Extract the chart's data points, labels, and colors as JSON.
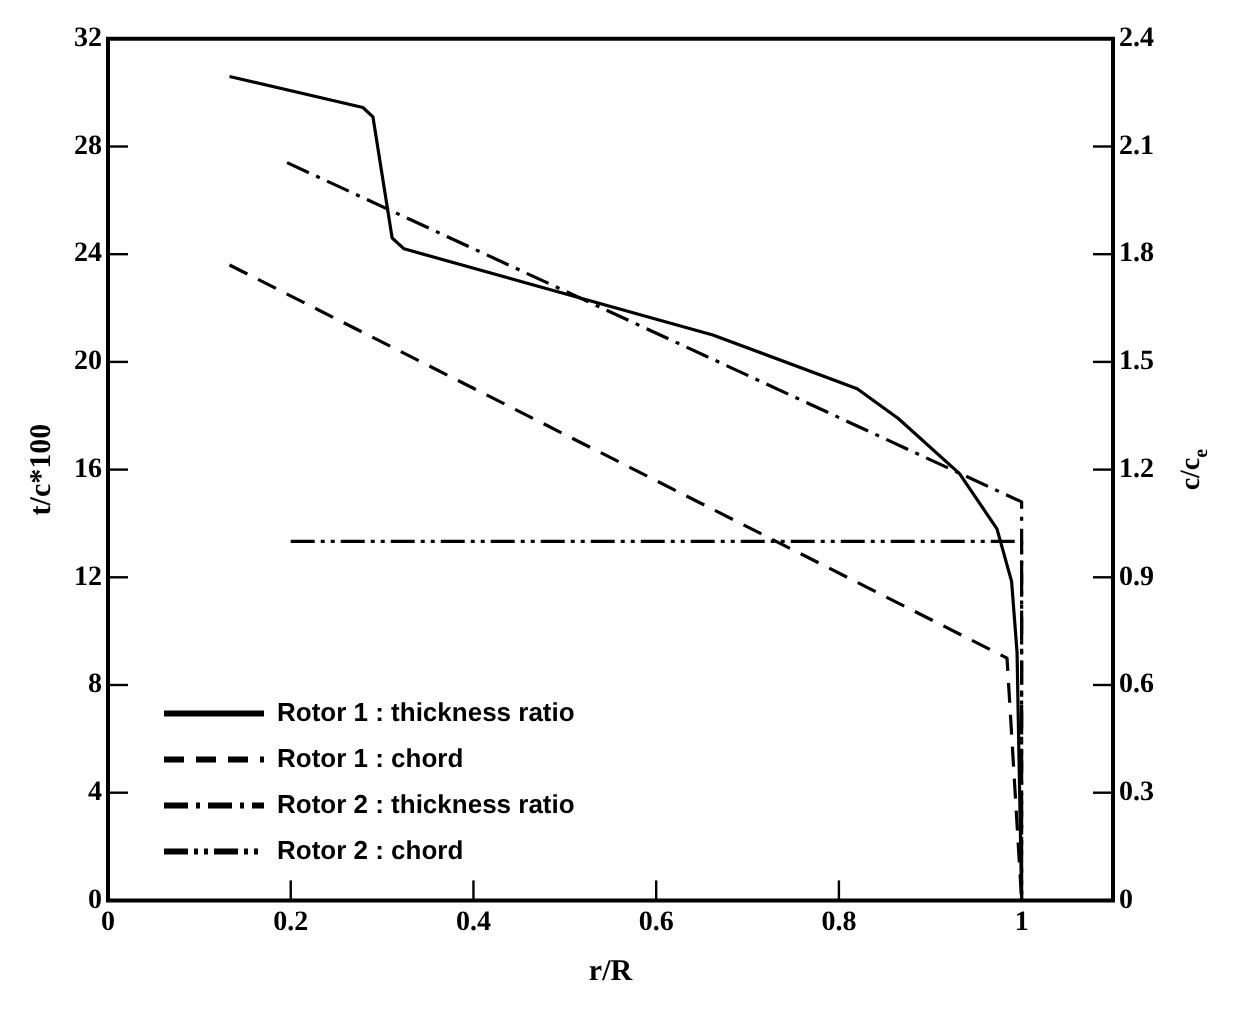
{
  "chart_data": {
    "type": "line",
    "xlabel": "r/R",
    "ylabel": "t/c*100",
    "y2label": "c/c$_{e}$",
    "xlim": [
      0,
      1.1
    ],
    "xticks": [
      0,
      0.2,
      0.4,
      0.6,
      0.8,
      1
    ],
    "ylim": [
      0,
      32
    ],
    "yticks": [
      0,
      4,
      8,
      12,
      16,
      20,
      24,
      28,
      32
    ],
    "y2lim": [
      0,
      2.4
    ],
    "y2ticks": [
      0,
      0.3,
      0.6,
      0.9,
      1.2,
      1.5,
      1.8,
      2.1,
      2.4
    ],
    "grid": false,
    "legend": "bottom left",
    "marker": "none",
    "series": [
      {
        "name": "Rotor 1 : thickness ratio",
        "color": "#000000",
        "line_style": "solid",
        "x": [
          0.133,
          0.279,
          0.29,
          0.311,
          0.324,
          0.662,
          0.82,
          0.865,
          0.932,
          0.973,
          0.989,
          0.995,
          1.0
        ],
        "values": [
          30.6,
          29.45,
          29.1,
          24.6,
          24.2,
          21.0,
          19.0,
          17.9,
          15.85,
          13.8,
          11.85,
          9.2,
          0
        ]
      },
      {
        "name": "Rotor 1 : chord",
        "color": "#000000",
        "line_style": "dashed",
        "axis": "y2",
        "x": [
          0.133,
          0.984,
          1.0
        ],
        "values": [
          1.77,
          0.675,
          0
        ]
      },
      {
        "name": "Rotor 2 : thickness ratio",
        "color": "#000000",
        "line_style": "dashdot",
        "x": [
          0.196,
          1.0,
          1.0
        ],
        "values": [
          27.4,
          14.8,
          0
        ]
      },
      {
        "name": "Rotor 2 : chord",
        "color": "#000000",
        "line_style": "dashdotdot",
        "axis": "y2",
        "x": [
          0.2,
          1.0,
          1.0
        ],
        "values": [
          1.0,
          1.0,
          0
        ]
      }
    ]
  }
}
